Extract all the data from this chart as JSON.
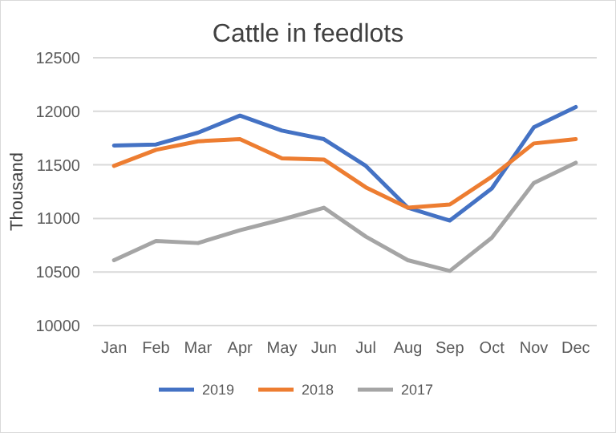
{
  "chart_data": {
    "type": "line",
    "title": "Cattle in feedlots",
    "ylabel": "Thousand",
    "categories": [
      "Jan",
      "Feb",
      "Mar",
      "Apr",
      "May",
      "Jun",
      "Jul",
      "Aug",
      "Sep",
      "Oct",
      "Nov",
      "Dec"
    ],
    "series": [
      {
        "name": "2019",
        "color": "#4472c4",
        "values": [
          11680,
          11690,
          11800,
          11960,
          11820,
          11740,
          11490,
          11100,
          10980,
          11280,
          11850,
          12040
        ]
      },
      {
        "name": "2018",
        "color": "#ed7d31",
        "values": [
          11490,
          11640,
          11720,
          11740,
          11560,
          11550,
          11290,
          11100,
          11130,
          11390,
          11700,
          11740
        ]
      },
      {
        "name": "2017",
        "color": "#a5a5a5",
        "values": [
          10610,
          10790,
          10770,
          10890,
          10990,
          11100,
          10830,
          10610,
          10510,
          10820,
          11330,
          11520
        ]
      }
    ],
    "ylim": [
      10000,
      12500
    ],
    "yticks": [
      10000,
      10500,
      11000,
      11500,
      12000,
      12500
    ],
    "grid": "y",
    "legend": "bottom",
    "marker": "none",
    "line_style": "solid"
  }
}
